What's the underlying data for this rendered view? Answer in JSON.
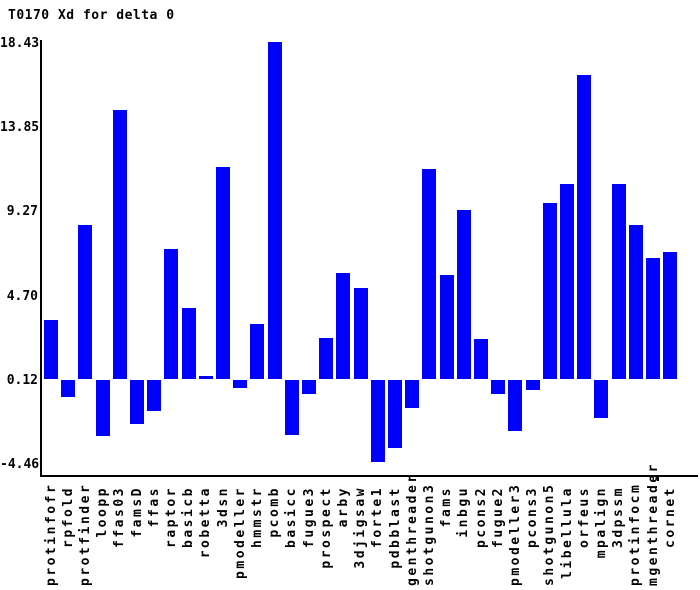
{
  "title": "T0170 Xd for delta 0",
  "colors": {
    "bar": "#0000ff",
    "axis": "#000000",
    "text": "#000000",
    "background": "#ffffff"
  },
  "chart_data": {
    "type": "bar",
    "title": "T0170 Xd for delta 0",
    "xlabel": "",
    "ylabel": "",
    "grid": false,
    "legend": "none",
    "ylim": [
      -4.46,
      18.43
    ],
    "yticks": [
      18.43,
      13.85,
      9.27,
      4.7,
      0.12,
      -4.46
    ],
    "baseline": 0,
    "categories": [
      "protinfofr",
      "rpfold",
      "protfinder",
      "loopp",
      "ffas03",
      "famsD",
      "ffas",
      "raptor",
      "basicb",
      "robetta",
      "3dsn",
      "pmodeller",
      "hmmstr",
      "pcomb",
      "basicc",
      "fugue3",
      "prospect",
      "arby",
      "3djigsaw",
      "forte1",
      "pdbblast",
      "genthreader",
      "shotgunon3",
      "fams",
      "inbgu",
      "pcons2",
      "fugue2",
      "pmodeller3",
      "pcons3",
      "shotgunon5",
      "libellula",
      "orfeus",
      "mpalign",
      "3dpssm",
      "protinfocm",
      "mgenthreader",
      "cornet"
    ],
    "values": [
      3.2,
      -0.95,
      8.4,
      -3.05,
      14.7,
      -2.4,
      -1.7,
      7.1,
      3.9,
      0.15,
      11.6,
      -0.45,
      3.0,
      18.43,
      -3.0,
      -0.75,
      2.25,
      5.8,
      4.95,
      -4.46,
      -3.7,
      -1.55,
      11.5,
      5.7,
      9.25,
      2.2,
      -0.75,
      -2.8,
      -0.55,
      9.6,
      10.65,
      16.6,
      -2.1,
      10.65,
      8.4,
      6.6,
      6.95
    ]
  }
}
